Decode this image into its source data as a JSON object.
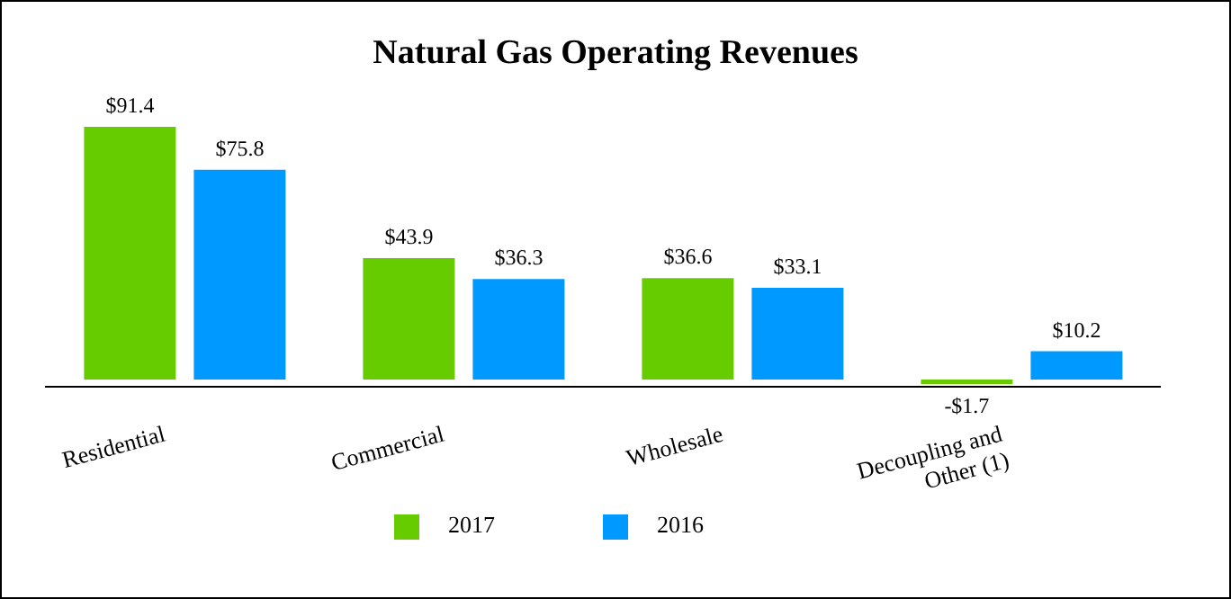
{
  "chart_data": {
    "type": "bar",
    "title": "Natural Gas Operating Revenues",
    "categories": [
      "Residential",
      "Commercial",
      "Wholesale",
      "Decoupling and Other (1)"
    ],
    "series": [
      {
        "name": "2017",
        "color": "#66cc00",
        "values": [
          91.4,
          43.9,
          36.6,
          -1.7
        ],
        "value_labels": [
          "$91.4",
          "$43.9",
          "$36.6",
          "-$1.7"
        ]
      },
      {
        "name": "2016",
        "color": "#0099ff",
        "values": [
          75.8,
          36.3,
          33.1,
          10.2
        ],
        "value_labels": [
          "$75.8",
          "$36.3",
          "$33.1",
          "$10.2"
        ]
      }
    ],
    "legend": "bottom",
    "grid": false
  }
}
